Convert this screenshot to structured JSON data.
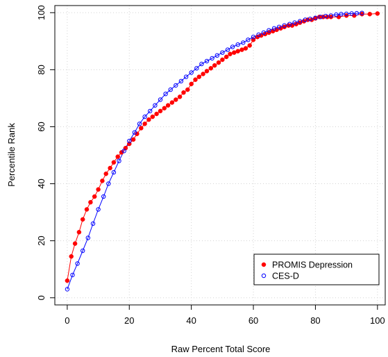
{
  "chart_data": {
    "type": "line",
    "xlabel": "Raw Percent Total Score",
    "ylabel": "Percentile Rank",
    "xlim": [
      -4,
      102.5
    ],
    "ylim": [
      -2.5,
      102.5
    ],
    "x_ticks": [
      0,
      20,
      40,
      60,
      80,
      100
    ],
    "x_tick_labels": [
      "0",
      "20",
      "40",
      "60",
      "80",
      "100"
    ],
    "y_ticks": [
      0,
      20,
      40,
      60,
      80,
      100
    ],
    "y_tick_labels": [
      "0",
      "20",
      "40",
      "60",
      "80",
      "100"
    ],
    "grid": true,
    "legend": "bottom-right",
    "series": [
      {
        "name": "PROMIS Depression",
        "color": "#ff0000",
        "marker": "filled-circle",
        "points": [
          [
            0,
            6
          ],
          [
            1.3,
            14.5
          ],
          [
            2.5,
            19
          ],
          [
            3.8,
            23
          ],
          [
            5,
            27.5
          ],
          [
            6.3,
            31
          ],
          [
            7.5,
            33.5
          ],
          [
            8.8,
            35.5
          ],
          [
            10,
            38
          ],
          [
            11.3,
            41
          ],
          [
            12.5,
            43.5
          ],
          [
            13.8,
            45.5
          ],
          [
            15,
            47.5
          ],
          [
            16.3,
            49.5
          ],
          [
            17.5,
            51
          ],
          [
            18.8,
            52.5
          ],
          [
            20,
            54
          ],
          [
            21.3,
            55.5
          ],
          [
            22.5,
            57.5
          ],
          [
            23.8,
            59.5
          ],
          [
            25,
            61
          ],
          [
            26.3,
            62.5
          ],
          [
            27.5,
            63.5
          ],
          [
            28.8,
            64.5
          ],
          [
            30,
            65.5
          ],
          [
            31.3,
            66.5
          ],
          [
            32.5,
            67.5
          ],
          [
            33.8,
            68.5
          ],
          [
            35,
            69.5
          ],
          [
            36.3,
            70.5
          ],
          [
            37.5,
            72
          ],
          [
            38.8,
            73
          ],
          [
            40,
            75
          ],
          [
            41.3,
            76.5
          ],
          [
            42.5,
            77.5
          ],
          [
            43.8,
            78.5
          ],
          [
            45,
            79.5
          ],
          [
            46.3,
            80.5
          ],
          [
            47.5,
            81.5
          ],
          [
            48.8,
            82.5
          ],
          [
            50,
            83.5
          ],
          [
            51.3,
            84.5
          ],
          [
            52.5,
            85.5
          ],
          [
            53.8,
            86
          ],
          [
            55,
            86.5
          ],
          [
            56.3,
            87
          ],
          [
            57.5,
            87.5
          ],
          [
            58.8,
            88.5
          ],
          [
            60,
            90.5
          ],
          [
            61.3,
            91.5
          ],
          [
            62.5,
            92
          ],
          [
            63.8,
            92.5
          ],
          [
            65,
            93
          ],
          [
            66.3,
            93.5
          ],
          [
            67.5,
            94
          ],
          [
            68.8,
            94.5
          ],
          [
            70,
            95
          ],
          [
            71.3,
            95.5
          ],
          [
            72.5,
            95.5
          ],
          [
            73.8,
            96
          ],
          [
            75,
            96.5
          ],
          [
            76.3,
            97
          ],
          [
            77.5,
            97.5
          ],
          [
            78.8,
            97.5
          ],
          [
            80,
            98
          ],
          [
            81.3,
            98.5
          ],
          [
            82.5,
            98.5
          ],
          [
            83.8,
            98.5
          ],
          [
            85,
            98.5
          ],
          [
            87.5,
            98.5
          ],
          [
            90,
            99
          ],
          [
            92.5,
            99
          ],
          [
            95,
            99.5
          ],
          [
            97.5,
            99.5
          ],
          [
            100,
            99.7
          ]
        ]
      },
      {
        "name": "CES-D",
        "color": "#0000ff",
        "marker": "open-circle",
        "points": [
          [
            0,
            3
          ],
          [
            1.7,
            8
          ],
          [
            3.3,
            12
          ],
          [
            5,
            16.5
          ],
          [
            6.7,
            21
          ],
          [
            8.3,
            26
          ],
          [
            10,
            31
          ],
          [
            11.7,
            35.5
          ],
          [
            13.3,
            40
          ],
          [
            15,
            44
          ],
          [
            16.7,
            48
          ],
          [
            18.3,
            51.5
          ],
          [
            20,
            55
          ],
          [
            21.7,
            58
          ],
          [
            23.3,
            61
          ],
          [
            25,
            63.5
          ],
          [
            26.7,
            65.5
          ],
          [
            28.3,
            67.5
          ],
          [
            30,
            69.5
          ],
          [
            31.7,
            71.5
          ],
          [
            33.3,
            73
          ],
          [
            35,
            74.5
          ],
          [
            36.7,
            76
          ],
          [
            38.3,
            77.5
          ],
          [
            40,
            79
          ],
          [
            41.7,
            80.5
          ],
          [
            43.3,
            82
          ],
          [
            45,
            83
          ],
          [
            46.7,
            84
          ],
          [
            48.3,
            85
          ],
          [
            50,
            86
          ],
          [
            51.7,
            87
          ],
          [
            53.3,
            88
          ],
          [
            55,
            88.8
          ],
          [
            56.7,
            89.5
          ],
          [
            58.3,
            90.5
          ],
          [
            60,
            91.5
          ],
          [
            61.7,
            92.3
          ],
          [
            63.3,
            93
          ],
          [
            65,
            93.8
          ],
          [
            66.7,
            94.5
          ],
          [
            68.3,
            95
          ],
          [
            70,
            95.5
          ],
          [
            71.7,
            96
          ],
          [
            73.3,
            96.5
          ],
          [
            75,
            97
          ],
          [
            76.7,
            97.5
          ],
          [
            78.3,
            97.8
          ],
          [
            80,
            98.2
          ],
          [
            81.7,
            98.5
          ],
          [
            83.3,
            98.8
          ],
          [
            85,
            99
          ],
          [
            86.7,
            99.3
          ],
          [
            88.3,
            99.5
          ],
          [
            90,
            99.6
          ],
          [
            91.7,
            99.7
          ],
          [
            93.3,
            99.8
          ],
          [
            95,
            99.9
          ]
        ]
      }
    ]
  }
}
